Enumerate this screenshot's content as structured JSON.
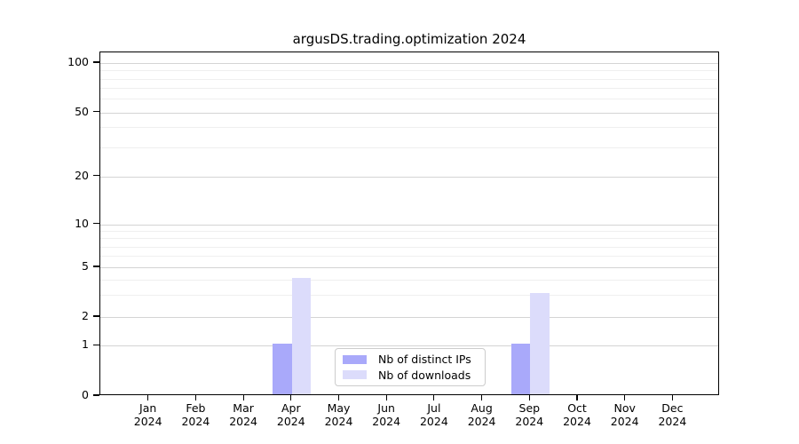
{
  "chart_data": {
    "type": "bar",
    "title": "argusDS.trading.optimization 2024",
    "categories": [
      "Jan 2024",
      "Feb 2024",
      "Mar 2024",
      "Apr 2024",
      "May 2024",
      "Jun 2024",
      "Jul 2024",
      "Aug 2024",
      "Sep 2024",
      "Oct 2024",
      "Nov 2024",
      "Dec 2024"
    ],
    "series": [
      {
        "name": "Nb of distinct IPs",
        "color": "#a9a9fa",
        "values": [
          0,
          0,
          0,
          1,
          0,
          0,
          0,
          0,
          1,
          0,
          0,
          0
        ]
      },
      {
        "name": "Nb of downloads",
        "color": "#dcdcfb",
        "values": [
          0,
          0,
          0,
          4,
          0,
          0,
          0,
          0,
          3,
          0,
          0,
          0
        ]
      }
    ],
    "xlabel": "",
    "ylabel": "",
    "yscale": "symlog",
    "ylim": [
      0,
      100
    ],
    "yticks": [
      0,
      1,
      2,
      5,
      10,
      20,
      50,
      100
    ],
    "minor_yticks": [
      3,
      4,
      6,
      7,
      8,
      9,
      30,
      40,
      60,
      70,
      80,
      90
    ],
    "grid": true,
    "legend_position": "lower center"
  },
  "colors": {
    "major_grid": "#d4d4d4",
    "minor_grid": "#efefef",
    "spine": "#000000",
    "legend_border": "#cccccc",
    "background": "#ffffff"
  }
}
